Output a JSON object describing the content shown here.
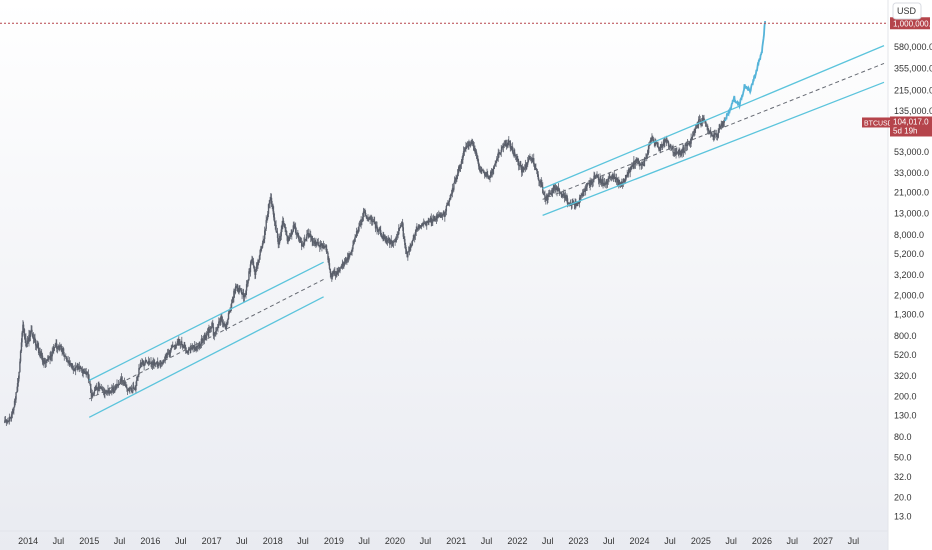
{
  "chart_data": {
    "type": "candlestick",
    "symbol": "BTCUSD",
    "currency_label": "USD",
    "y_scale": "log",
    "ylim": [
      10,
      1700000
    ],
    "xlim": [
      "2013-08-10",
      "2027-12-31"
    ],
    "grid": false,
    "colors": {
      "candle": "#5a5f6b",
      "projection": "#56b4d9",
      "channel": "#5bc4dc",
      "midline": "#666a73",
      "target_line": "#b5444b",
      "price_badge": "#b5444b"
    },
    "y_ticks": [
      {
        "label": "1,000,000.0",
        "value": 1000000
      },
      {
        "label": "580,000.0",
        "value": 580000
      },
      {
        "label": "355,000.0",
        "value": 355000
      },
      {
        "label": "215,000.0",
        "value": 215000
      },
      {
        "label": "135,000.0",
        "value": 135000
      },
      {
        "label": "53,000.0",
        "value": 53000
      },
      {
        "label": "33,000.0",
        "value": 33000
      },
      {
        "label": "21,000.0",
        "value": 21000
      },
      {
        "label": "13,000.0",
        "value": 13000
      },
      {
        "label": "8,000.0",
        "value": 8000
      },
      {
        "label": "5,200.0",
        "value": 5200
      },
      {
        "label": "3,200.0",
        "value": 3200
      },
      {
        "label": "2,000.0",
        "value": 2000
      },
      {
        "label": "1,300.0",
        "value": 1300
      },
      {
        "label": "800.0",
        "value": 800
      },
      {
        "label": "520.0",
        "value": 520
      },
      {
        "label": "320.0",
        "value": 320
      },
      {
        "label": "200.0",
        "value": 200
      },
      {
        "label": "130.0",
        "value": 130
      },
      {
        "label": "80.0",
        "value": 80
      },
      {
        "label": "50.0",
        "value": 50
      },
      {
        "label": "32.0",
        "value": 32
      },
      {
        "label": "20.0",
        "value": 20
      },
      {
        "label": "13.0",
        "value": 13
      }
    ],
    "x_ticks": [
      {
        "label": "2014",
        "date": "2014-01-01"
      },
      {
        "label": "Jul",
        "date": "2014-07-01"
      },
      {
        "label": "2015",
        "date": "2015-01-01"
      },
      {
        "label": "Jul",
        "date": "2015-07-01"
      },
      {
        "label": "2016",
        "date": "2016-01-01"
      },
      {
        "label": "Jul",
        "date": "2016-07-01"
      },
      {
        "label": "2017",
        "date": "2017-01-01"
      },
      {
        "label": "Jul",
        "date": "2017-07-01"
      },
      {
        "label": "2018",
        "date": "2018-01-01"
      },
      {
        "label": "Jul",
        "date": "2018-07-01"
      },
      {
        "label": "2019",
        "date": "2019-01-01"
      },
      {
        "label": "Jul",
        "date": "2019-07-01"
      },
      {
        "label": "2020",
        "date": "2020-01-01"
      },
      {
        "label": "Jul",
        "date": "2020-07-01"
      },
      {
        "label": "2021",
        "date": "2021-01-01"
      },
      {
        "label": "Jul",
        "date": "2021-07-01"
      },
      {
        "label": "2022",
        "date": "2022-01-01"
      },
      {
        "label": "Jul",
        "date": "2022-07-01"
      },
      {
        "label": "2023",
        "date": "2023-01-01"
      },
      {
        "label": "Jul",
        "date": "2023-07-01"
      },
      {
        "label": "2024",
        "date": "2024-01-01"
      },
      {
        "label": "Jul",
        "date": "2024-07-01"
      },
      {
        "label": "2025",
        "date": "2025-01-01"
      },
      {
        "label": "Jul",
        "date": "2025-07-01"
      },
      {
        "label": "2026",
        "date": "2026-01-01"
      },
      {
        "label": "Jul",
        "date": "2026-07-01"
      },
      {
        "label": "2027",
        "date": "2027-01-01"
      },
      {
        "label": "Jul",
        "date": "2027-07-01"
      }
    ],
    "price_path": [
      [
        "2013-08-15",
        110
      ],
      [
        "2013-10-01",
        130
      ],
      [
        "2013-11-05",
        300
      ],
      [
        "2013-12-01",
        1100
      ],
      [
        "2013-12-20",
        650
      ],
      [
        "2014-01-20",
        900
      ],
      [
        "2014-03-01",
        600
      ],
      [
        "2014-04-10",
        420
      ],
      [
        "2014-05-20",
        500
      ],
      [
        "2014-06-10",
        650
      ],
      [
        "2014-07-20",
        600
      ],
      [
        "2014-08-20",
        480
      ],
      [
        "2014-09-20",
        400
      ],
      [
        "2014-10-20",
        380
      ],
      [
        "2014-11-20",
        370
      ],
      [
        "2014-12-31",
        315
      ],
      [
        "2015-01-15",
        200
      ],
      [
        "2015-02-20",
        245
      ],
      [
        "2015-04-15",
        225
      ],
      [
        "2015-06-01",
        240
      ],
      [
        "2015-07-10",
        290
      ],
      [
        "2015-08-20",
        230
      ],
      [
        "2015-10-01",
        240
      ],
      [
        "2015-11-04",
        440
      ],
      [
        "2015-12-31",
        430
      ],
      [
        "2016-03-01",
        420
      ],
      [
        "2016-06-17",
        720
      ],
      [
        "2016-08-01",
        580
      ],
      [
        "2016-10-01",
        610
      ],
      [
        "2016-12-31",
        960
      ],
      [
        "2017-01-05",
        1100
      ],
      [
        "2017-01-12",
        780
      ],
      [
        "2017-03-01",
        1200
      ],
      [
        "2017-03-25",
        950
      ],
      [
        "2017-05-25",
        2500
      ],
      [
        "2017-07-15",
        1950
      ],
      [
        "2017-09-01",
        4800
      ],
      [
        "2017-09-15",
        3200
      ],
      [
        "2017-11-08",
        7400
      ],
      [
        "2017-12-17",
        19500
      ],
      [
        "2018-02-06",
        6500
      ],
      [
        "2018-03-05",
        11500
      ],
      [
        "2018-04-05",
        6600
      ],
      [
        "2018-05-05",
        9800
      ],
      [
        "2018-06-28",
        5900
      ],
      [
        "2018-07-25",
        8300
      ],
      [
        "2018-09-15",
        6400
      ],
      [
        "2018-11-14",
        6300
      ],
      [
        "2018-12-15",
        3200
      ],
      [
        "2019-02-08",
        3600
      ],
      [
        "2019-04-02",
        5000
      ],
      [
        "2019-06-26",
        13000
      ],
      [
        "2019-08-10",
        11500
      ],
      [
        "2019-10-25",
        7500
      ],
      [
        "2019-12-18",
        6500
      ],
      [
        "2020-02-12",
        10300
      ],
      [
        "2020-03-12",
        4800
      ],
      [
        "2020-05-10",
        9000
      ],
      [
        "2020-07-27",
        11000
      ],
      [
        "2020-10-21",
        12900
      ],
      [
        "2020-12-31",
        29000
      ],
      [
        "2021-02-21",
        57000
      ],
      [
        "2021-04-14",
        64000
      ],
      [
        "2021-05-19",
        35000
      ],
      [
        "2021-07-20",
        30000
      ],
      [
        "2021-09-07",
        50000
      ],
      [
        "2021-11-10",
        68000
      ],
      [
        "2022-01-24",
        35000
      ],
      [
        "2022-03-28",
        47000
      ],
      [
        "2022-05-12",
        28000
      ],
      [
        "2022-06-18",
        18000
      ],
      [
        "2022-08-15",
        24000
      ],
      [
        "2022-11-09",
        16000
      ],
      [
        "2022-12-31",
        16500
      ],
      [
        "2023-02-15",
        24000
      ],
      [
        "2023-04-14",
        30000
      ],
      [
        "2023-06-15",
        25000
      ],
      [
        "2023-07-13",
        31500
      ],
      [
        "2023-09-11",
        25000
      ],
      [
        "2023-12-08",
        44000
      ],
      [
        "2024-01-23",
        39000
      ],
      [
        "2024-03-14",
        73000
      ],
      [
        "2024-05-01",
        57000
      ],
      [
        "2024-06-05",
        71000
      ],
      [
        "2024-08-05",
        50000
      ],
      [
        "2024-09-06",
        53000
      ],
      [
        "2024-11-05",
        69000
      ],
      [
        "2024-12-17",
        107000
      ],
      [
        "2025-01-20",
        109000
      ],
      [
        "2025-02-28",
        80000
      ],
      [
        "2025-04-07",
        76000
      ],
      [
        "2025-05-22",
        111000
      ]
    ],
    "projection_path": [
      [
        "2025-05-22",
        111000
      ],
      [
        "2025-06-20",
        135000
      ],
      [
        "2025-07-20",
        180000
      ],
      [
        "2025-08-20",
        155000
      ],
      [
        "2025-09-20",
        240000
      ],
      [
        "2025-10-20",
        210000
      ],
      [
        "2025-11-20",
        300000
      ],
      [
        "2025-12-15",
        420000
      ],
      [
        "2026-01-01",
        520000
      ],
      [
        "2026-01-20",
        1050000
      ]
    ],
    "channels": [
      {
        "upper": [
          [
            "2015-01-01",
            290
          ],
          [
            "2018-11-01",
            4300
          ]
        ],
        "mid": [
          [
            "2015-01-01",
            190
          ],
          [
            "2018-11-01",
            2900
          ]
        ],
        "lower": [
          [
            "2015-01-01",
            125
          ],
          [
            "2018-11-01",
            1950
          ]
        ]
      },
      {
        "upper": [
          [
            "2022-06-01",
            23000
          ],
          [
            "2027-12-31",
            600000
          ]
        ],
        "mid": [
          [
            "2022-06-01",
            18000
          ],
          [
            "2027-12-31",
            400000
          ]
        ],
        "lower": [
          [
            "2022-06-01",
            12500
          ],
          [
            "2027-12-31",
            260000
          ]
        ]
      }
    ],
    "target_level": {
      "value": 1000000,
      "label": "1,000,000.0"
    },
    "last_price": {
      "symbol": "BTCUSD",
      "value": 104017,
      "label": "104,017.0",
      "countdown": "5d 19h"
    }
  }
}
